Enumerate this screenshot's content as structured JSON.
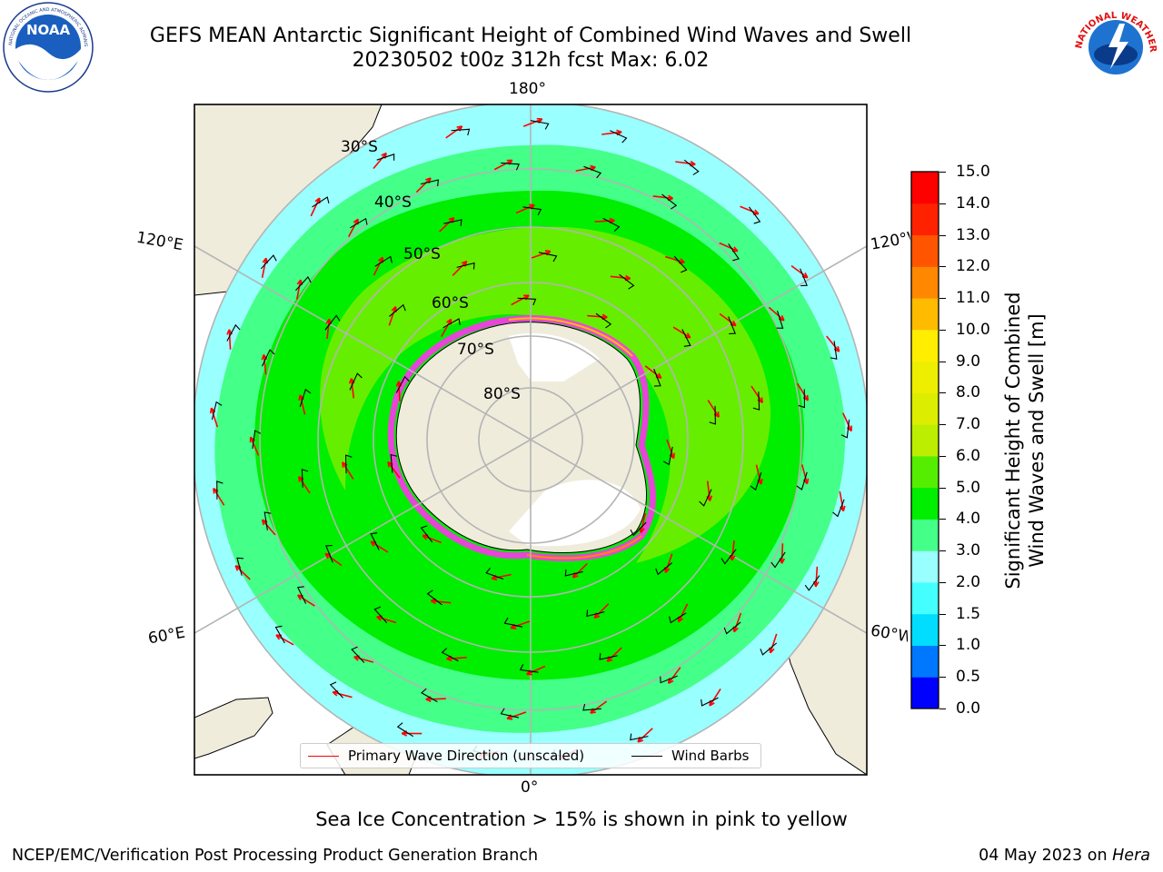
{
  "title": {
    "line1": "GEFS MEAN Antarctic Significant Height of Combined Wind Waves and Swell",
    "line2": "20230502 t00z 312h fcst   Max: 6.02"
  },
  "map": {
    "projection": "south-polar-stereographic",
    "lon_labels": {
      "top": "180°",
      "bottom": "0°",
      "upper_left": "120°E",
      "upper_right": "120°W",
      "lower_left": "60°E",
      "lower_right": "60°W"
    },
    "lat_labels": [
      "30°S",
      "40°S",
      "50°S",
      "60°S",
      "70°S",
      "80°S"
    ],
    "colors": {
      "land": "#efecdc",
      "ocean_void": "#ffffff",
      "grid": "#b4b4b4",
      "coast": "#000000",
      "sea_ice": "#ff33ee",
      "wave_arrow": "#ff0000",
      "wind_barb": "#000000"
    }
  },
  "colorbar": {
    "ticks": [
      "0.0",
      "0.5",
      "1.0",
      "1.5",
      "2.0",
      "3.0",
      "4.0",
      "5.0",
      "6.0",
      "7.0",
      "8.0",
      "9.0",
      "10.0",
      "11.0",
      "12.0",
      "13.0",
      "14.0",
      "15.0"
    ],
    "colors": [
      "#0000ff",
      "#0077ff",
      "#00ddff",
      "#44ffff",
      "#99ffff",
      "#44ff88",
      "#00ee00",
      "#55ee00",
      "#bbee00",
      "#dded00",
      "#eeee00",
      "#ffee00",
      "#ffbb00",
      "#ff8800",
      "#ff5500",
      "#ff2200",
      "#ff0000"
    ],
    "label_line1": "Significant Height of Combined",
    "label_line2": "Wind Waves and Swell [m]"
  },
  "legend": {
    "primary_wave": "Primary Wave Direction (unscaled)",
    "wind_barbs": "Wind Barbs"
  },
  "sea_ice_note": "Sea Ice Concentration > 15% is shown in pink to yellow",
  "footer": {
    "left": "NCEP/EMC/Verification Post Processing Product Generation Branch",
    "date": "04 May 2023 on",
    "host": "Hera"
  },
  "logos": {
    "noaa": {
      "text": "NOAA",
      "ring_text": "NATIONAL OCEANIC AND ATMOSPHERIC ADMINISTRATION",
      "icon": "noaa-logo-icon"
    },
    "nws": {
      "ring_text": "NATIONAL WEATHER SERVICE",
      "icon": "nws-logo-icon"
    }
  }
}
